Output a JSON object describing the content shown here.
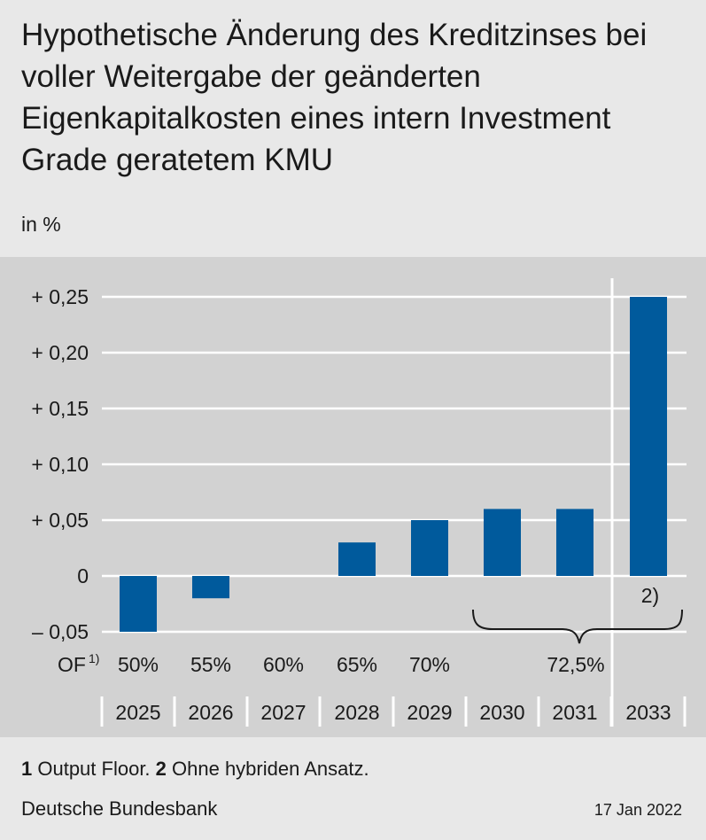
{
  "chart_data": {
    "type": "bar",
    "title": "Hypothetische Änderung des Kreditzinses bei voller Weitergabe der geänderten Eigenkapitalkosten eines intern Investment Grade geratetem KMU",
    "unit": "in %",
    "categories": [
      "2025",
      "2026",
      "2027",
      "2028",
      "2029",
      "2030",
      "2031",
      "2033"
    ],
    "values": [
      -0.05,
      -0.02,
      0,
      0.03,
      0.05,
      0.06,
      0.06,
      0.25
    ],
    "ylim": [
      -0.05,
      0.25
    ],
    "yticks": [
      0.25,
      0.2,
      0.15,
      0.1,
      0.05,
      0,
      -0.05
    ],
    "ytick_labels": [
      "+ 0,25",
      "+ 0,20",
      "+ 0,15",
      "+ 0,10",
      "+ 0,05",
      "0",
      "– 0,05"
    ],
    "grid": true,
    "of_row": {
      "label": "OF",
      "label_sup": "1)",
      "values": [
        "50%",
        "55%",
        "60%",
        "65%",
        "70%",
        "72,5%"
      ]
    },
    "bar_annotation": "2)",
    "colors": {
      "bar": "#005a9c",
      "plot_bg": "#d2d2d2",
      "grid": "#ffffff",
      "page_bg": "#e8e8e8"
    }
  },
  "footnote": {
    "n1": "1",
    "t1": " Output Floor. ",
    "n2": "2",
    "t2": " Ohne hybriden Ansatz."
  },
  "source": "Deutsche Bundesbank",
  "date": "17 Jan 2022"
}
